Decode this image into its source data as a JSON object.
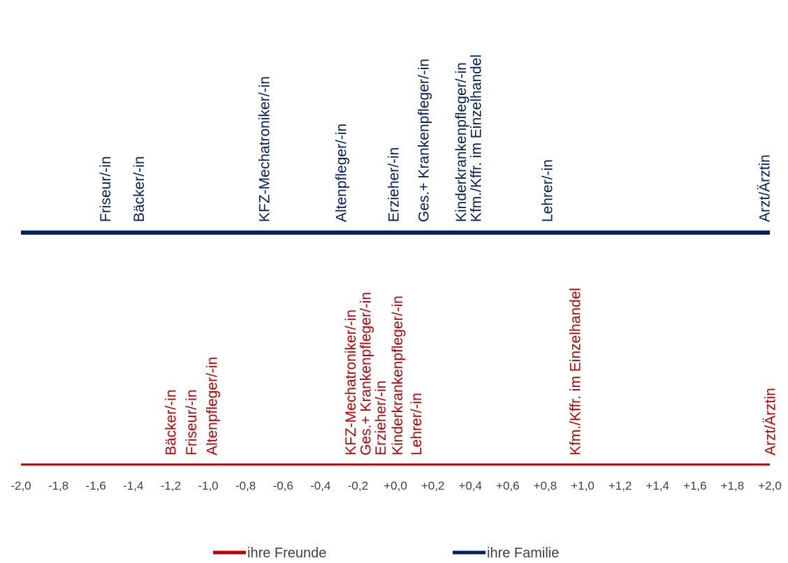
{
  "chart_data": {
    "type": "scatter",
    "xlim": [
      -2.0,
      2.0
    ],
    "x_ticks": [
      "-2,0",
      "-1,8",
      "-1,6",
      "-1,4",
      "-1,2",
      "-1,0",
      "-0,8",
      "-0,6",
      "-0,4",
      "-0,2",
      "+0,0",
      "+0,2",
      "+0,4",
      "+0,6",
      "+0,8",
      "+1,0",
      "+1,2",
      "+1,4",
      "+1,6",
      "+1,8",
      "+2,0"
    ],
    "grid": false,
    "legend_position": "bottom",
    "series": [
      {
        "name": "ihre Familie",
        "color": "#002060",
        "points": [
          {
            "label": "Friseur/-in",
            "x": -1.55
          },
          {
            "label": "Bäcker/-in",
            "x": -1.37
          },
          {
            "label": "KFZ-Mechatroniker/-in",
            "x": -0.7
          },
          {
            "label": "Altenpfleger/-in",
            "x": -0.29
          },
          {
            "label": "Erzieher/-in",
            "x": -0.01
          },
          {
            "label": "Ges.+ Krankenpfleger/-in",
            "x": 0.15
          },
          {
            "label": "Kinderkrankenpfleger/-in",
            "x": 0.35
          },
          {
            "label": "Kfm./Kffr. im Einzelhandel",
            "x": 0.43
          },
          {
            "label": "Lehrer/-in",
            "x": 0.81
          },
          {
            "label": "Arzt/Ärztin",
            "x": 1.97
          }
        ]
      },
      {
        "name": "ihre Freunde",
        "color": "#c00000",
        "points": [
          {
            "label": "Bäcker/-in",
            "x": -1.2
          },
          {
            "label": "Friseur/-in",
            "x": -1.09
          },
          {
            "label": "Altenpfleger/-in",
            "x": -0.98
          },
          {
            "label": "KFZ-Mechatroniker/-in",
            "x": -0.24
          },
          {
            "label": "Ges.+ Krankenpfleger/-in",
            "x": -0.16
          },
          {
            "label": "Erzieher/-in",
            "x": -0.08
          },
          {
            "label": "Kinderkrankenpfleger/-in",
            "x": 0.01
          },
          {
            "label": "Lehrer/-in",
            "x": 0.11
          },
          {
            "label": "Kfm./Kffr. im Einzelhandel",
            "x": 0.96
          },
          {
            "label": "Arzt/Ärztin",
            "x": 2.0
          }
        ]
      }
    ],
    "legend": [
      {
        "name": "ihre Freunde",
        "color": "#c00000"
      },
      {
        "name": "ihre Familie",
        "color": "#002060"
      }
    ]
  }
}
